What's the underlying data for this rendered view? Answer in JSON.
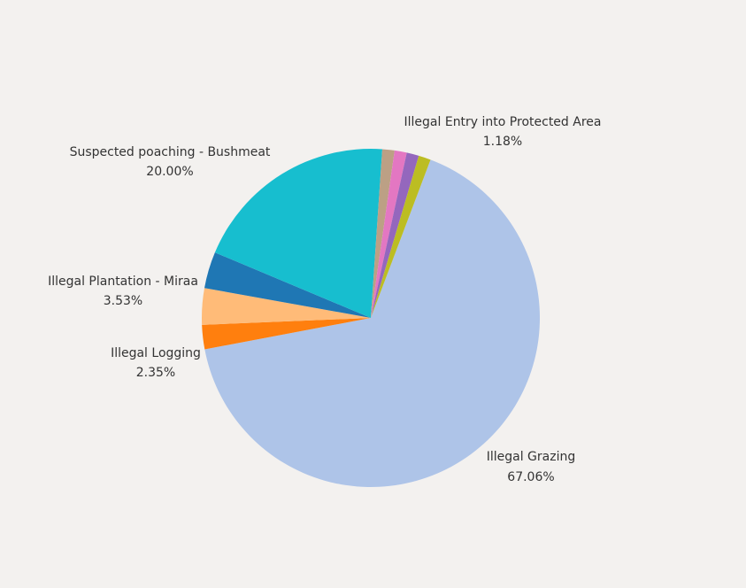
{
  "chart_data": {
    "type": "pie",
    "slices": [
      {
        "category": "Illegal Grazing",
        "value": 67.06,
        "label": "67.06%",
        "color": "#aec4e8"
      },
      {
        "category": "Illegal Logging",
        "value": 2.35,
        "label": "2.35%",
        "color": "#ff7f0e"
      },
      {
        "category": "",
        "value": 3.53,
        "label": "",
        "color": "#ffbb78"
      },
      {
        "category": "Illegal Plantation - Miraa",
        "value": 3.53,
        "label": "3.53%",
        "color": "#1f77b4"
      },
      {
        "category": "Suspected poaching - Bushmeat",
        "value": 20.0,
        "label": "20.00%",
        "color": "#17becf"
      },
      {
        "category": "",
        "value": 1.18,
        "label": "",
        "color": "#bca085"
      },
      {
        "category": "",
        "value": 1.18,
        "label": "",
        "color": "#e377c2"
      },
      {
        "category": "",
        "value": 1.18,
        "label": "",
        "color": "#9467bd"
      },
      {
        "category": "Illegal Entry into Protected Area",
        "value": 1.18,
        "label": "1.18%",
        "color": "#bcbd22"
      }
    ]
  }
}
